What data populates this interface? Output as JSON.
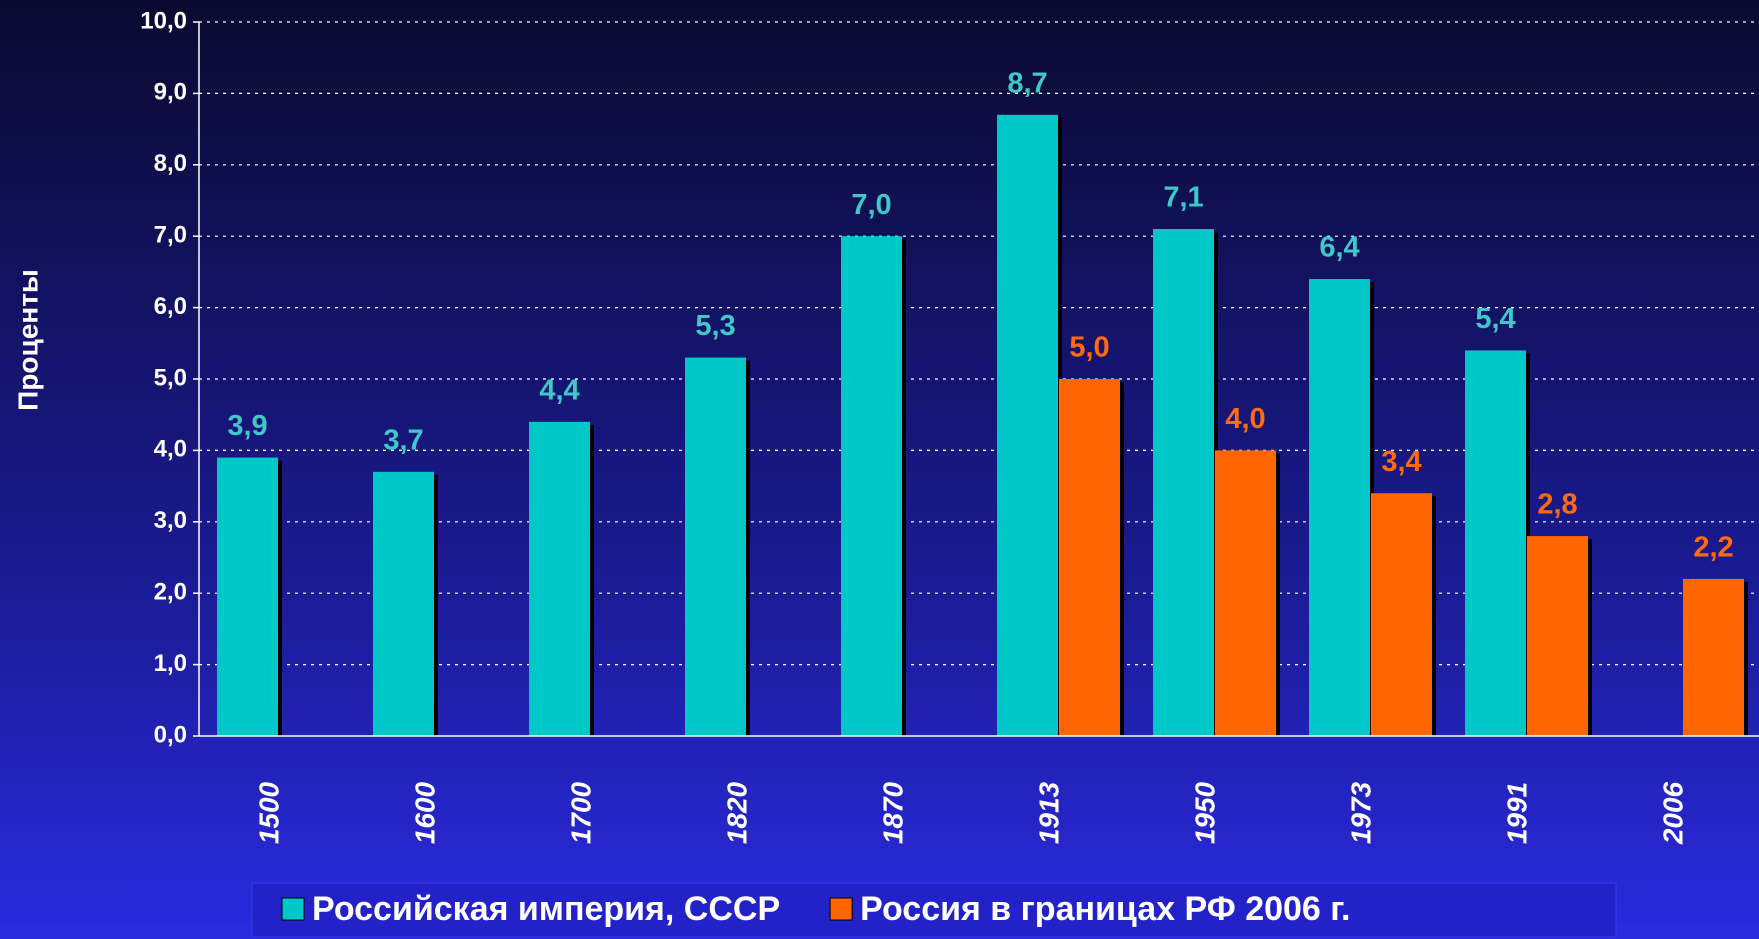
{
  "chart_data": {
    "type": "bar",
    "y_label": "Проценты",
    "categories": [
      "1500",
      "1600",
      "1700",
      "1820",
      "1870",
      "1913",
      "1950",
      "1973",
      "1991",
      "2006"
    ],
    "series": [
      {
        "name": "Российская империя, СССР",
        "color": "#00c8c8",
        "values": [
          3.9,
          3.7,
          4.4,
          5.3,
          7.0,
          8.7,
          7.1,
          6.4,
          5.4,
          null
        ],
        "value_labels": [
          "3,9",
          "3,7",
          "4,4",
          "5,3",
          "7,0",
          "8,7",
          "7,1",
          "6,4",
          "5,4",
          null
        ],
        "label_color": "#40c8c8"
      },
      {
        "name": "Россия в границах РФ 2006 г.",
        "color": "#ff6600",
        "values": [
          null,
          null,
          null,
          null,
          null,
          5.0,
          4.0,
          3.4,
          2.8,
          2.2
        ],
        "value_labels": [
          null,
          null,
          null,
          null,
          null,
          "5,0",
          "4,0",
          "3,4",
          "2,8",
          "2,2"
        ],
        "label_color": "#ff6a10"
      }
    ],
    "ylim": [
      0,
      10
    ],
    "yticks": [
      {
        "value": 0,
        "label": "0,0"
      },
      {
        "value": 1,
        "label": "1,0"
      },
      {
        "value": 2,
        "label": "2,0"
      },
      {
        "value": 3,
        "label": "3,0"
      },
      {
        "value": 4,
        "label": "4,0"
      },
      {
        "value": 5,
        "label": "5,0"
      },
      {
        "value": 6,
        "label": "6,0"
      },
      {
        "value": 7,
        "label": "7,0"
      },
      {
        "value": 8,
        "label": "8,0"
      },
      {
        "value": 9,
        "label": "9,0"
      },
      {
        "value": 10,
        "label": "10,0"
      }
    ],
    "grid": true,
    "legend": "bottom"
  }
}
